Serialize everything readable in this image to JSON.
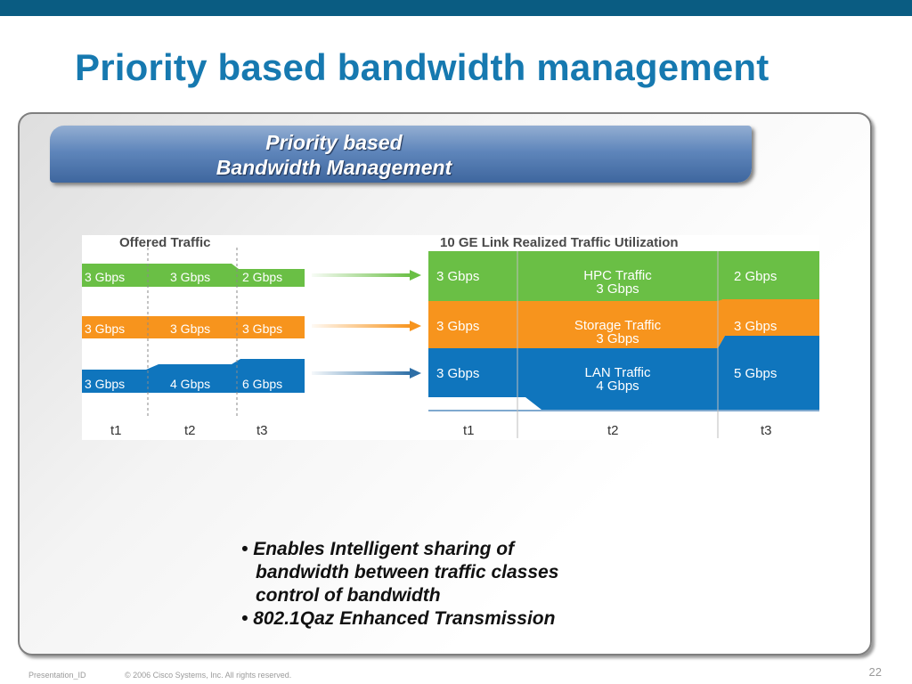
{
  "slide": {
    "title": "Priority based bandwidth management",
    "banner_line1": "Priority based",
    "banner_line2": "Bandwidth Management"
  },
  "diagram": {
    "offered_header": "Offered Traffic",
    "realized_header": "10 GE Link Realized Traffic Utilization",
    "time_labels": [
      "t1",
      "t2",
      "t3"
    ],
    "offered": [
      {
        "name": "HPC",
        "color": "#6abf45",
        "labels": [
          "3 Gbps",
          "3 Gbps",
          "2 Gbps"
        ]
      },
      {
        "name": "Storage",
        "color": "#f7941d",
        "labels": [
          "3 Gbps",
          "3 Gbps",
          "3 Gbps"
        ]
      },
      {
        "name": "LAN",
        "color": "#0f75bd",
        "labels": [
          "3 Gbps",
          "4 Gbps",
          "6 Gbps"
        ]
      }
    ],
    "realized": [
      {
        "color": "#6abf45",
        "t1": "3 Gbps",
        "t2_line1": "HPC Traffic",
        "t2_line2": "3 Gbps",
        "t3": "2 Gbps"
      },
      {
        "color": "#f7941d",
        "t1": "3 Gbps",
        "t2_line1": "Storage Traffic",
        "t2_line2": "3 Gbps",
        "t3": "3 Gbps"
      },
      {
        "color": "#0f75bd",
        "t1": "3 Gbps",
        "t2_line1": "LAN Traffic",
        "t2_line2": "4 Gbps",
        "t3": "5 Gbps"
      }
    ]
  },
  "bullets": {
    "b1_line1": "Enables Intelligent sharing of",
    "b1_line2": "bandwidth between traffic classes",
    "b1_line3": "control of bandwidth",
    "b2": "802.1Qaz Enhanced Transmission"
  },
  "footer": {
    "presentation_id": "Presentation_ID",
    "copyright": "© 2006 Cisco Systems, Inc. All rights reserved.",
    "page_number": "22"
  }
}
